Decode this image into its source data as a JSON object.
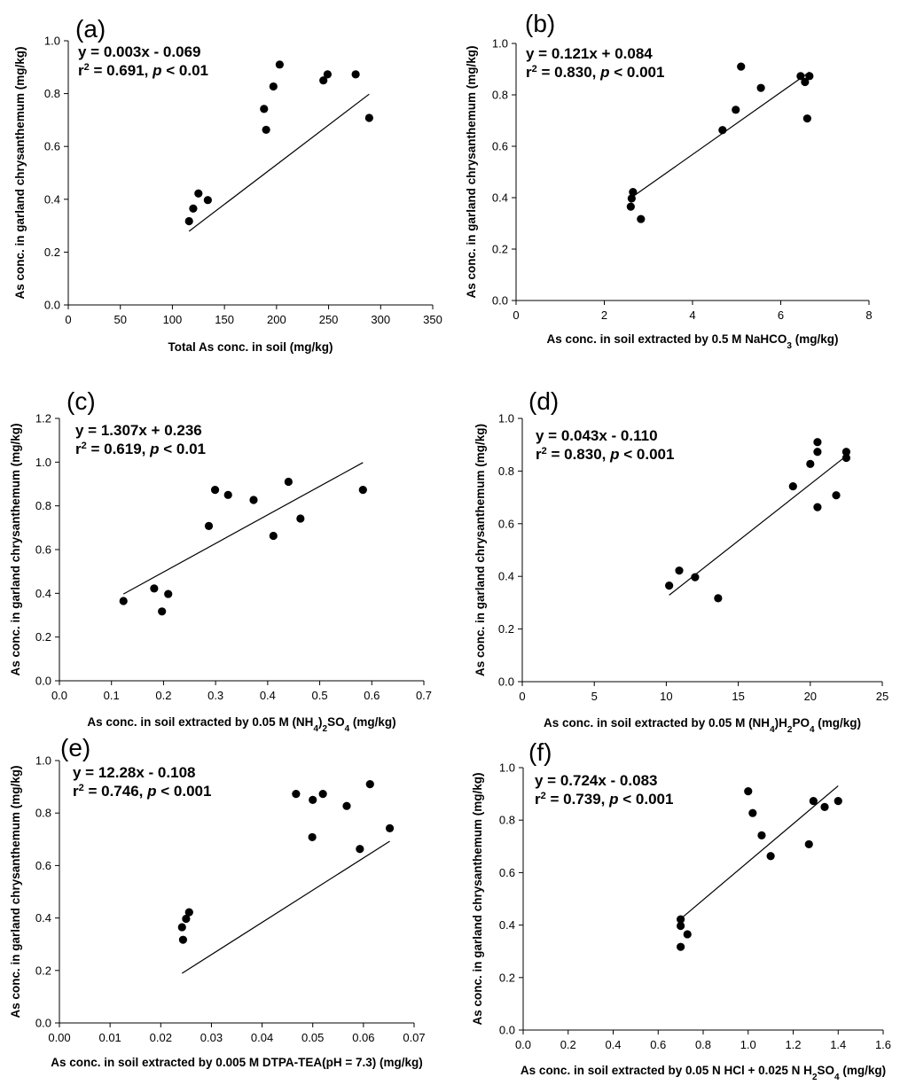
{
  "chart_data": [
    {
      "id": "a",
      "type": "scatter",
      "panel_label": "(a)",
      "equation": "y = 0.003x - 0.069",
      "r2": {
        "prefix": "r",
        "sup": "2",
        "text": " = 0.691, ",
        "p": "p",
        "tail": " < 0.01"
      },
      "xlabel": [
        {
          "t": "Total As conc. in soil (mg/kg)"
        }
      ],
      "ylabel": "As conc. in garland chrysanthemum (mg/kg)",
      "xlim": [
        0,
        350
      ],
      "ylim": [
        0,
        1.0
      ],
      "xticks": [
        0,
        50,
        100,
        150,
        200,
        250,
        300,
        350
      ],
      "xtick_labels": [
        "0",
        "50",
        "100",
        "150",
        "200",
        "250",
        "300",
        "350"
      ],
      "yticks": [
        0,
        0.2,
        0.4,
        0.6,
        0.8,
        1.0
      ],
      "ytick_labels": [
        "0.0",
        "0.2",
        "0.4",
        "0.6",
        "0.8",
        "1.0"
      ],
      "points": [
        [
          116,
          0.317
        ],
        [
          120,
          0.365
        ],
        [
          125,
          0.422
        ],
        [
          134,
          0.397
        ],
        [
          188,
          0.742
        ],
        [
          190,
          0.663
        ],
        [
          197,
          0.827
        ],
        [
          203,
          0.91
        ],
        [
          245,
          0.85
        ],
        [
          249,
          0.873
        ],
        [
          276,
          0.873
        ],
        [
          289,
          0.708
        ]
      ],
      "fit": {
        "x": [
          116,
          289
        ]
      }
    },
    {
      "id": "b",
      "type": "scatter",
      "panel_label": "(b)",
      "equation": "y = 0.121x + 0.084",
      "r2": {
        "prefix": "r",
        "sup": "2",
        "text": " = 0.830, ",
        "p": "p",
        "tail": " < 0.001"
      },
      "xlabel": [
        {
          "t": "As conc. in soil extracted by 0.5 M NaHCO"
        },
        {
          "t": "3",
          "sub": true
        },
        {
          "t": " (mg/kg)"
        }
      ],
      "ylabel": "As conc. in garland chrysanthemum (mg/kg)",
      "xlim": [
        0,
        8
      ],
      "ylim": [
        0,
        1.0
      ],
      "xticks": [
        0,
        2,
        4,
        6,
        8
      ],
      "xtick_labels": [
        "0",
        "2",
        "4",
        "6",
        "8"
      ],
      "yticks": [
        0,
        0.2,
        0.4,
        0.6,
        0.8,
        1.0
      ],
      "ytick_labels": [
        "0.0",
        "0.2",
        "0.4",
        "0.6",
        "0.8",
        "1.0"
      ],
      "points": [
        [
          2.6,
          0.365
        ],
        [
          2.62,
          0.397
        ],
        [
          2.65,
          0.422
        ],
        [
          2.83,
          0.317
        ],
        [
          4.68,
          0.663
        ],
        [
          4.98,
          0.742
        ],
        [
          5.1,
          0.91
        ],
        [
          5.55,
          0.827
        ],
        [
          6.45,
          0.873
        ],
        [
          6.55,
          0.85
        ],
        [
          6.6,
          0.708
        ],
        [
          6.65,
          0.873
        ]
      ],
      "fit": {
        "x": [
          2.6,
          6.65
        ]
      }
    },
    {
      "id": "c",
      "type": "scatter",
      "panel_label": "(c)",
      "equation": "y = 1.307x + 0.236",
      "r2": {
        "prefix": "r",
        "sup": "2",
        "text": " = 0.619, ",
        "p": "p",
        "tail": " < 0.01"
      },
      "xlabel": [
        {
          "t": "As  conc. in soil extracted by 0.05 M (NH"
        },
        {
          "t": "4",
          "sub": true
        },
        {
          "t": ")"
        },
        {
          "t": "2",
          "sub": true
        },
        {
          "t": "SO"
        },
        {
          "t": "4",
          "sub": true
        },
        {
          "t": " (mg/kg)"
        }
      ],
      "ylabel": "As conc. in garland chrysanthemum (mg/kg)",
      "xlim": [
        0,
        0.7
      ],
      "ylim": [
        0,
        1.2
      ],
      "xticks": [
        0,
        0.1,
        0.2,
        0.3,
        0.4,
        0.5,
        0.6,
        0.7
      ],
      "xtick_labels": [
        "0.0",
        "0.1",
        "0.2",
        "0.3",
        "0.4",
        "0.5",
        "0.6",
        "0.7"
      ],
      "yticks": [
        0,
        0.2,
        0.4,
        0.6,
        0.8,
        1.0,
        1.2
      ],
      "ytick_labels": [
        "0.0",
        "0.2",
        "0.4",
        "0.6",
        "0.8",
        "1.0",
        "1.2"
      ],
      "points": [
        [
          0.123,
          0.365
        ],
        [
          0.182,
          0.422
        ],
        [
          0.197,
          0.317
        ],
        [
          0.209,
          0.397
        ],
        [
          0.287,
          0.708
        ],
        [
          0.299,
          0.873
        ],
        [
          0.324,
          0.85
        ],
        [
          0.373,
          0.827
        ],
        [
          0.411,
          0.663
        ],
        [
          0.44,
          0.91
        ],
        [
          0.463,
          0.742
        ],
        [
          0.583,
          0.873
        ]
      ],
      "fit": {
        "x": [
          0.123,
          0.583
        ]
      }
    },
    {
      "id": "d",
      "type": "scatter",
      "panel_label": "(d)",
      "equation": "y = 0.043x - 0.110",
      "r2": {
        "prefix": "r",
        "sup": "2",
        "text": " = 0.830, ",
        "p": "p",
        "tail": " < 0.001"
      },
      "xlabel": [
        {
          "t": "As conc. in soil extracted by 0.05 M (NH"
        },
        {
          "t": "4",
          "sub": true
        },
        {
          "t": ")H"
        },
        {
          "t": "2",
          "sub": true
        },
        {
          "t": "PO"
        },
        {
          "t": "4",
          "sub": true
        },
        {
          "t": " (mg/kg)"
        }
      ],
      "ylabel": "As conc. in garland chrysanthemum (mg/kg)",
      "xlim": [
        0,
        25
      ],
      "ylim": [
        0,
        1.0
      ],
      "xticks": [
        0,
        5,
        10,
        15,
        20,
        25
      ],
      "xtick_labels": [
        "0",
        "5",
        "10",
        "15",
        "20",
        "25"
      ],
      "yticks": [
        0,
        0.2,
        0.4,
        0.6,
        0.8,
        1.0
      ],
      "ytick_labels": [
        "0.0",
        "0.2",
        "0.4",
        "0.6",
        "0.8",
        "1.0"
      ],
      "points": [
        [
          10.2,
          0.365
        ],
        [
          10.9,
          0.422
        ],
        [
          12.0,
          0.397
        ],
        [
          13.6,
          0.317
        ],
        [
          18.8,
          0.742
        ],
        [
          20.0,
          0.827
        ],
        [
          20.5,
          0.663
        ],
        [
          20.5,
          0.873
        ],
        [
          20.5,
          0.91
        ],
        [
          21.8,
          0.708
        ],
        [
          22.5,
          0.85
        ],
        [
          22.5,
          0.873
        ]
      ],
      "fit": {
        "x": [
          10.2,
          22.5
        ]
      }
    },
    {
      "id": "e",
      "type": "scatter",
      "panel_label": "(e)",
      "equation": "y = 12.28x - 0.108",
      "r2": {
        "prefix": "r",
        "sup": "2",
        "text": " = 0.746, ",
        "p": "p",
        "tail": " < 0.001"
      },
      "xlabel": [
        {
          "t": "As conc. in soil extracted by 0.005 M DTPA-TEA(pH = 7.3) (mg/kg)"
        }
      ],
      "ylabel": "As conc. in garland chrysanthemum (mg/kg)",
      "xlim": [
        0,
        0.07
      ],
      "ylim": [
        0,
        1.0
      ],
      "xticks": [
        0,
        0.01,
        0.02,
        0.03,
        0.04,
        0.05,
        0.06,
        0.07
      ],
      "xtick_labels": [
        "0.00",
        "0.01",
        "0.02",
        "0.03",
        "0.04",
        "0.05",
        "0.06",
        "0.07"
      ],
      "yticks": [
        0,
        0.2,
        0.4,
        0.6,
        0.8,
        1.0
      ],
      "ytick_labels": [
        "0.0",
        "0.2",
        "0.4",
        "0.6",
        "0.8",
        "1.0"
      ],
      "points": [
        [
          0.0242,
          0.365
        ],
        [
          0.0244,
          0.317
        ],
        [
          0.025,
          0.397
        ],
        [
          0.0256,
          0.422
        ],
        [
          0.0467,
          0.873
        ],
        [
          0.0499,
          0.708
        ],
        [
          0.05,
          0.85
        ],
        [
          0.052,
          0.873
        ],
        [
          0.0567,
          0.827
        ],
        [
          0.0593,
          0.663
        ],
        [
          0.0613,
          0.91
        ],
        [
          0.0652,
          0.742
        ]
      ],
      "fit": {
        "x": [
          0.0242,
          0.0652
        ]
      }
    },
    {
      "id": "f",
      "type": "scatter",
      "panel_label": "(f)",
      "equation": "y = 0.724x - 0.083",
      "r2": {
        "prefix": "r",
        "sup": "2",
        "text": " = 0.739, ",
        "p": "p",
        "tail": " < 0.001"
      },
      "xlabel": [
        {
          "t": "As conc. in soil extracted by 0.05 N HCl + 0.025 N H"
        },
        {
          "t": "2",
          "sub": true
        },
        {
          "t": "SO"
        },
        {
          "t": "4",
          "sub": true
        },
        {
          "t": " (mg/kg)"
        }
      ],
      "ylabel": "As conc. in garland chrysanthemum (mg/kg)",
      "xlim": [
        0,
        1.6
      ],
      "ylim": [
        0,
        1.0
      ],
      "xticks": [
        0,
        0.2,
        0.4,
        0.6,
        0.8,
        1.0,
        1.2,
        1.4,
        1.6
      ],
      "xtick_labels": [
        "0.0",
        "0.2",
        "0.4",
        "0.6",
        "0.8",
        "1.0",
        "1.2",
        "1.4",
        "1.6"
      ],
      "yticks": [
        0,
        0.2,
        0.4,
        0.6,
        0.8,
        1.0
      ],
      "ytick_labels": [
        "0.0",
        "0.2",
        "0.4",
        "0.6",
        "0.8",
        "1.0"
      ],
      "points": [
        [
          0.7,
          0.317
        ],
        [
          0.7,
          0.397
        ],
        [
          0.7,
          0.422
        ],
        [
          0.73,
          0.365
        ],
        [
          1.0,
          0.91
        ],
        [
          1.02,
          0.827
        ],
        [
          1.06,
          0.742
        ],
        [
          1.1,
          0.663
        ],
        [
          1.27,
          0.708
        ],
        [
          1.29,
          0.873
        ],
        [
          1.34,
          0.85
        ],
        [
          1.4,
          0.873
        ]
      ],
      "fit": {
        "x": [
          0.7,
          1.4
        ]
      }
    }
  ]
}
